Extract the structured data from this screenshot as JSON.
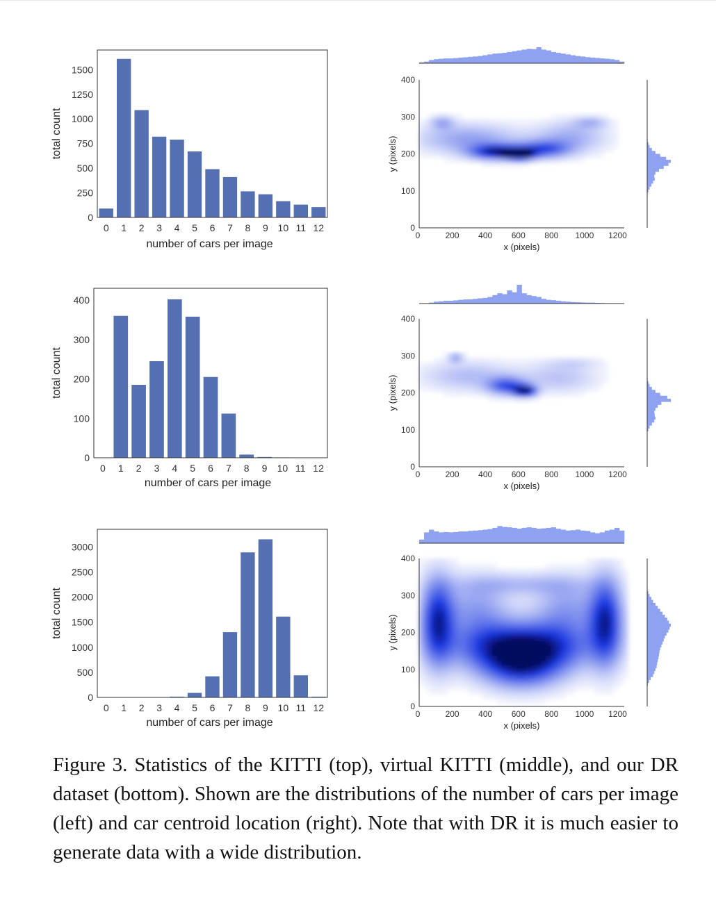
{
  "figure": {
    "caption": "Figure 3. Statistics of the KITTI (top), virtual KITTI (middle), and our DR dataset (bottom). Shown are the distributions of the number of cars per image (left) and car centroid location (right). Note that with DR it is much easier to generate data with a wide distribution.",
    "colors": {
      "bar": "#5470b0",
      "density": "#1a37e0",
      "marginal": "#8ea2f0"
    }
  },
  "chart_data": [
    {
      "id": "kitti-count",
      "type": "bar",
      "categories": [
        "0",
        "1",
        "2",
        "3",
        "4",
        "5",
        "6",
        "7",
        "8",
        "9",
        "10",
        "11",
        "12"
      ],
      "values": [
        90,
        1610,
        1090,
        820,
        790,
        670,
        490,
        410,
        265,
        235,
        165,
        130,
        105
      ],
      "xlabel": "number of cars per image",
      "ylabel": "total count",
      "ylim": [
        0,
        1700
      ],
      "yticks": [
        0,
        250,
        500,
        750,
        1000,
        1250,
        1500
      ]
    },
    {
      "id": "vkitti-count",
      "type": "bar",
      "categories": [
        "0",
        "1",
        "2",
        "3",
        "4",
        "5",
        "6",
        "7",
        "8",
        "9",
        "10",
        "11",
        "12"
      ],
      "values": [
        0,
        360,
        185,
        245,
        402,
        358,
        205,
        112,
        8,
        2,
        1,
        0,
        0
      ],
      "xlabel": "number of cars per image",
      "ylabel": "total count",
      "ylim": [
        0,
        430
      ],
      "yticks": [
        0,
        100,
        200,
        300,
        400
      ]
    },
    {
      "id": "dr-count",
      "type": "bar",
      "categories": [
        "0",
        "1",
        "2",
        "3",
        "4",
        "5",
        "6",
        "7",
        "8",
        "9",
        "10",
        "11",
        "12"
      ],
      "values": [
        0,
        0,
        0,
        3,
        15,
        90,
        420,
        1300,
        2890,
        3150,
        1610,
        440,
        15
      ],
      "xlabel": "number of cars per image",
      "ylabel": "total count",
      "ylim": [
        0,
        3350
      ],
      "yticks": [
        0,
        500,
        1000,
        1500,
        2000,
        2500,
        3000
      ]
    },
    {
      "id": "kitti-centroid",
      "type": "heatmap",
      "xlabel": "x (pixels)",
      "ylabel": "y (pixels)",
      "xlim": [
        0,
        1240
      ],
      "ylim": [
        0,
        400
      ],
      "xticks": [
        0,
        200,
        400,
        600,
        800,
        1000,
        1200
      ],
      "yticks": [
        0,
        100,
        200,
        300,
        400
      ],
      "hotspots": [
        {
          "x": 300,
          "y": 240,
          "sx": 220,
          "sy": 28,
          "w": 0.35
        },
        {
          "x": 470,
          "y": 205,
          "sx": 110,
          "sy": 14,
          "w": 0.85
        },
        {
          "x": 610,
          "y": 198,
          "sx": 55,
          "sy": 10,
          "w": 1.0
        },
        {
          "x": 750,
          "y": 212,
          "sx": 110,
          "sy": 16,
          "w": 0.6
        },
        {
          "x": 920,
          "y": 245,
          "sx": 150,
          "sy": 30,
          "w": 0.3
        },
        {
          "x": 140,
          "y": 285,
          "sx": 50,
          "sy": 12,
          "w": 0.3
        },
        {
          "x": 1040,
          "y": 285,
          "sx": 70,
          "sy": 10,
          "w": 0.25
        }
      ],
      "x_marginal": [
        0.05,
        0.1,
        0.2,
        0.25,
        0.28,
        0.3,
        0.3,
        0.32,
        0.35,
        0.37,
        0.4,
        0.42,
        0.45,
        0.5,
        0.55,
        0.6,
        0.62,
        0.65,
        0.7,
        0.75,
        0.8,
        0.85,
        0.9,
        0.88,
        1.0,
        0.85,
        0.8,
        0.7,
        0.65,
        0.6,
        0.55,
        0.5,
        0.45,
        0.42,
        0.38,
        0.35,
        0.33,
        0.3,
        0.28,
        0.25,
        0.2,
        0.1
      ],
      "y_marginal": [
        0,
        0,
        0,
        0,
        0,
        0,
        0,
        0,
        0,
        0,
        0,
        0,
        0,
        0,
        0,
        0,
        0,
        0,
        0,
        0,
        0.02,
        0.05,
        0.1,
        0.2,
        0.35,
        0.55,
        0.8,
        1.0,
        0.9,
        0.7,
        0.5,
        0.35,
        0.3,
        0.32,
        0.25,
        0.18,
        0.1,
        0.05,
        0.02,
        0,
        0,
        0,
        0,
        0,
        0,
        0,
        0,
        0,
        0,
        0
      ]
    },
    {
      "id": "vkitti-centroid",
      "type": "heatmap",
      "xlabel": "x (pixels)",
      "ylabel": "y (pixels)",
      "xlim": [
        0,
        1240
      ],
      "ylim": [
        0,
        400
      ],
      "xticks": [
        0,
        200,
        400,
        600,
        800,
        1000,
        1200
      ],
      "yticks": [
        0,
        100,
        200,
        300,
        400
      ],
      "hotspots": [
        {
          "x": 300,
          "y": 245,
          "sx": 200,
          "sy": 28,
          "w": 0.25
        },
        {
          "x": 530,
          "y": 218,
          "sx": 80,
          "sy": 16,
          "w": 0.6
        },
        {
          "x": 640,
          "y": 205,
          "sx": 45,
          "sy": 10,
          "w": 1.0
        },
        {
          "x": 850,
          "y": 240,
          "sx": 160,
          "sy": 28,
          "w": 0.22
        },
        {
          "x": 220,
          "y": 295,
          "sx": 30,
          "sy": 8,
          "w": 0.35
        },
        {
          "x": 940,
          "y": 280,
          "sx": 120,
          "sy": 10,
          "w": 0.12
        }
      ],
      "x_marginal": [
        0,
        0.02,
        0.05,
        0.1,
        0.12,
        0.15,
        0.15,
        0.17,
        0.2,
        0.22,
        0.22,
        0.25,
        0.28,
        0.3,
        0.35,
        0.45,
        0.55,
        0.5,
        0.7,
        0.6,
        1.0,
        0.55,
        0.45,
        0.4,
        0.35,
        0.25,
        0.2,
        0.18,
        0.15,
        0.12,
        0.1,
        0.08,
        0.07,
        0.06,
        0.05,
        0.05,
        0.04,
        0.03,
        0.02,
        0.01,
        0,
        0
      ],
      "y_marginal": [
        0,
        0,
        0,
        0,
        0,
        0,
        0,
        0,
        0,
        0,
        0,
        0,
        0,
        0,
        0,
        0,
        0,
        0,
        0,
        0,
        0.02,
        0.05,
        0.1,
        0.2,
        0.35,
        0.55,
        0.85,
        1.0,
        0.6,
        0.45,
        0.35,
        0.3,
        0.32,
        0.35,
        0.3,
        0.2,
        0.1,
        0.05,
        0,
        0,
        0,
        0,
        0,
        0,
        0,
        0,
        0,
        0,
        0,
        0
      ]
    },
    {
      "id": "dr-centroid",
      "type": "heatmap",
      "xlabel": "x (pixels)",
      "ylabel": "y (pixels)",
      "xlim": [
        0,
        1240
      ],
      "ylim": [
        0,
        400
      ],
      "xticks": [
        0,
        200,
        400,
        600,
        800,
        1000,
        1200
      ],
      "yticks": [
        0,
        100,
        200,
        300,
        400
      ],
      "hotspots": [
        {
          "x": 620,
          "y": 160,
          "sx": 260,
          "sy": 45,
          "w": 1.0
        },
        {
          "x": 620,
          "y": 100,
          "sx": 170,
          "sy": 40,
          "w": 0.55
        },
        {
          "x": 110,
          "y": 230,
          "sx": 70,
          "sy": 80,
          "w": 0.8
        },
        {
          "x": 1130,
          "y": 230,
          "sx": 70,
          "sy": 80,
          "w": 0.8
        },
        {
          "x": 350,
          "y": 260,
          "sx": 140,
          "sy": 60,
          "w": 0.35
        },
        {
          "x": 890,
          "y": 260,
          "sx": 140,
          "sy": 60,
          "w": 0.35
        },
        {
          "x": 620,
          "y": 330,
          "sx": 260,
          "sy": 20,
          "w": 0.22
        }
      ],
      "x_marginal": [
        0.2,
        0.6,
        0.75,
        0.65,
        0.6,
        0.62,
        0.6,
        0.62,
        0.65,
        0.65,
        0.68,
        0.7,
        0.72,
        0.75,
        0.78,
        0.85,
        0.95,
        0.9,
        0.88,
        0.85,
        0.8,
        0.85,
        0.88,
        0.85,
        0.8,
        0.82,
        0.85,
        0.88,
        0.8,
        0.75,
        0.7,
        0.72,
        0.75,
        0.7,
        0.68,
        0.6,
        0.55,
        0.6,
        0.7,
        0.75,
        0.85,
        0.7
      ],
      "y_marginal": [
        0,
        0,
        0,
        0,
        0,
        0,
        0,
        0,
        0,
        0,
        0.02,
        0.05,
        0.1,
        0.18,
        0.25,
        0.35,
        0.45,
        0.55,
        0.65,
        0.75,
        0.85,
        0.92,
        1.0,
        0.95,
        0.9,
        0.82,
        0.75,
        0.7,
        0.65,
        0.6,
        0.55,
        0.52,
        0.5,
        0.48,
        0.45,
        0.42,
        0.4,
        0.35,
        0.3,
        0.25,
        0.15,
        0.08,
        0.03,
        0,
        0,
        0,
        0,
        0,
        0,
        0
      ]
    }
  ]
}
